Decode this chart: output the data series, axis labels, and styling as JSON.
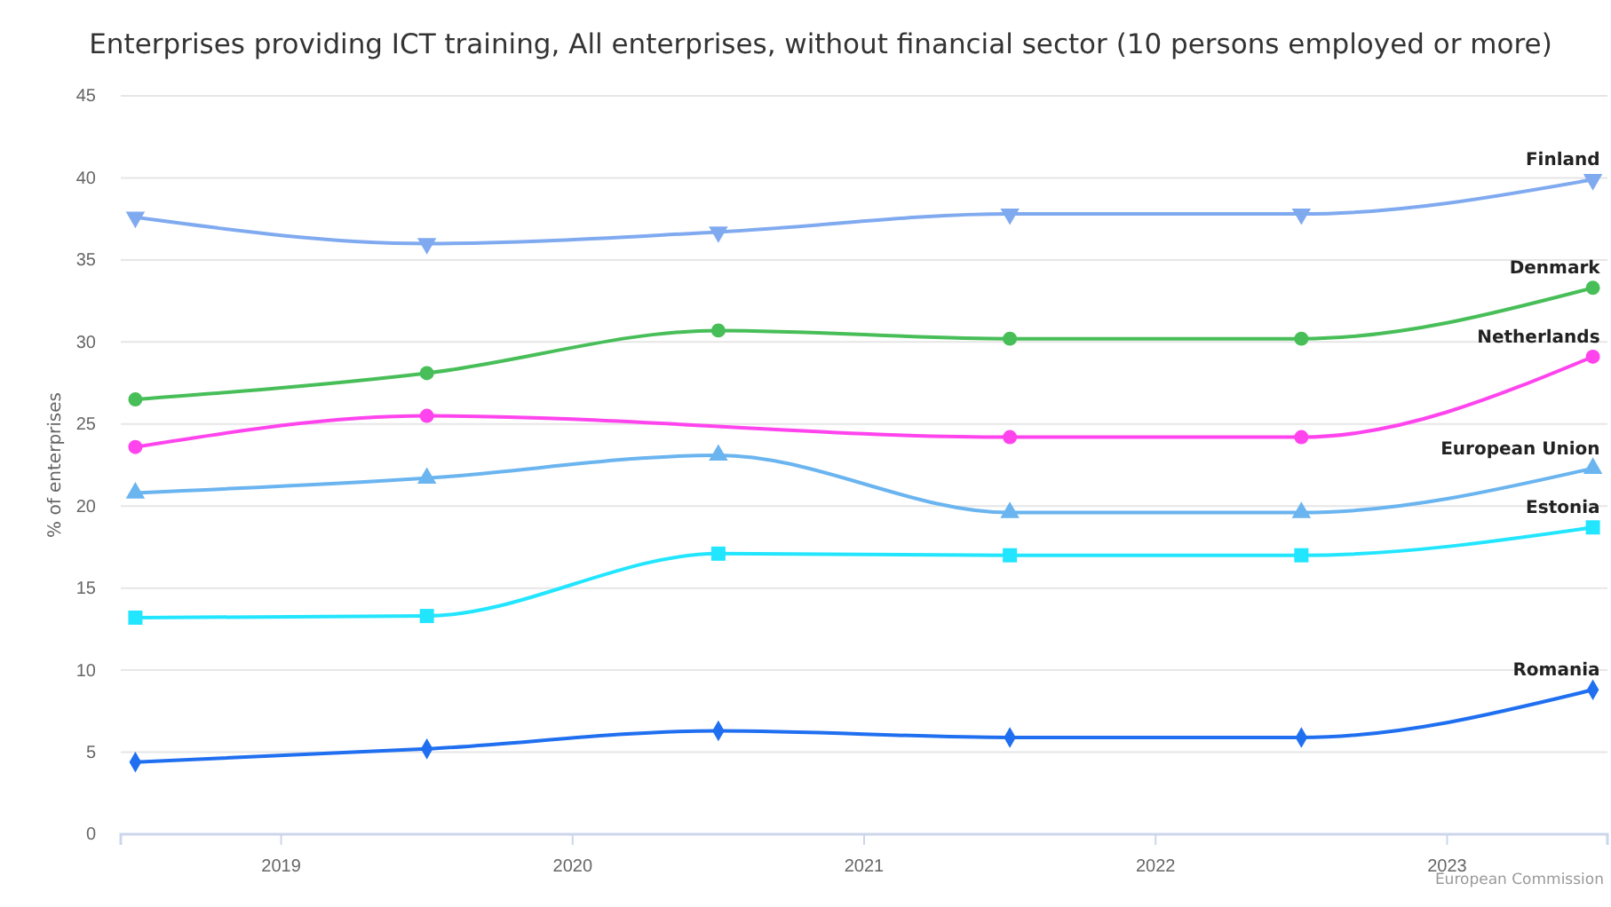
{
  "chart_data": {
    "type": "line",
    "title": "Enterprises providing ICT training, All enterprises, without financial sector (10 persons employed or more)",
    "ylabel": "% of enterprises",
    "x": [
      2018.5,
      2019.5,
      2020.5,
      2021.5,
      2022.5,
      2023.5
    ],
    "xlim": [
      2018.45,
      2023.55
    ],
    "xticks": [
      2019,
      2020,
      2021,
      2022,
      2023
    ],
    "ylim": [
      0,
      45
    ],
    "yticks": [
      0,
      5,
      10,
      15,
      20,
      25,
      30,
      35,
      40,
      45
    ],
    "grid": "y",
    "series": [
      {
        "name": "Finland",
        "color": "#80aaf0",
        "marker": "triangle-down",
        "values": [
          37.6,
          36.0,
          36.7,
          37.8,
          37.8,
          39.9
        ]
      },
      {
        "name": "Denmark",
        "color": "#47be58",
        "marker": "circle",
        "values": [
          26.5,
          28.1,
          30.7,
          30.2,
          30.2,
          33.3
        ]
      },
      {
        "name": "Netherlands",
        "color": "#ff44ee",
        "marker": "circle",
        "values": [
          23.6,
          25.5,
          null,
          24.2,
          24.2,
          29.1
        ]
      },
      {
        "name": "European Union",
        "color": "#6ab4f0",
        "marker": "triangle",
        "values": [
          20.8,
          21.7,
          23.1,
          19.6,
          19.6,
          22.3
        ]
      },
      {
        "name": "Estonia",
        "color": "#22e5ff",
        "marker": "square",
        "values": [
          13.2,
          13.3,
          17.1,
          17.0,
          17.0,
          18.7
        ]
      },
      {
        "name": "Romania",
        "color": "#1f6ff0",
        "marker": "diamond",
        "values": [
          4.4,
          5.2,
          6.3,
          5.9,
          5.9,
          8.8
        ]
      }
    ],
    "annotations": [
      "European Commission"
    ]
  }
}
